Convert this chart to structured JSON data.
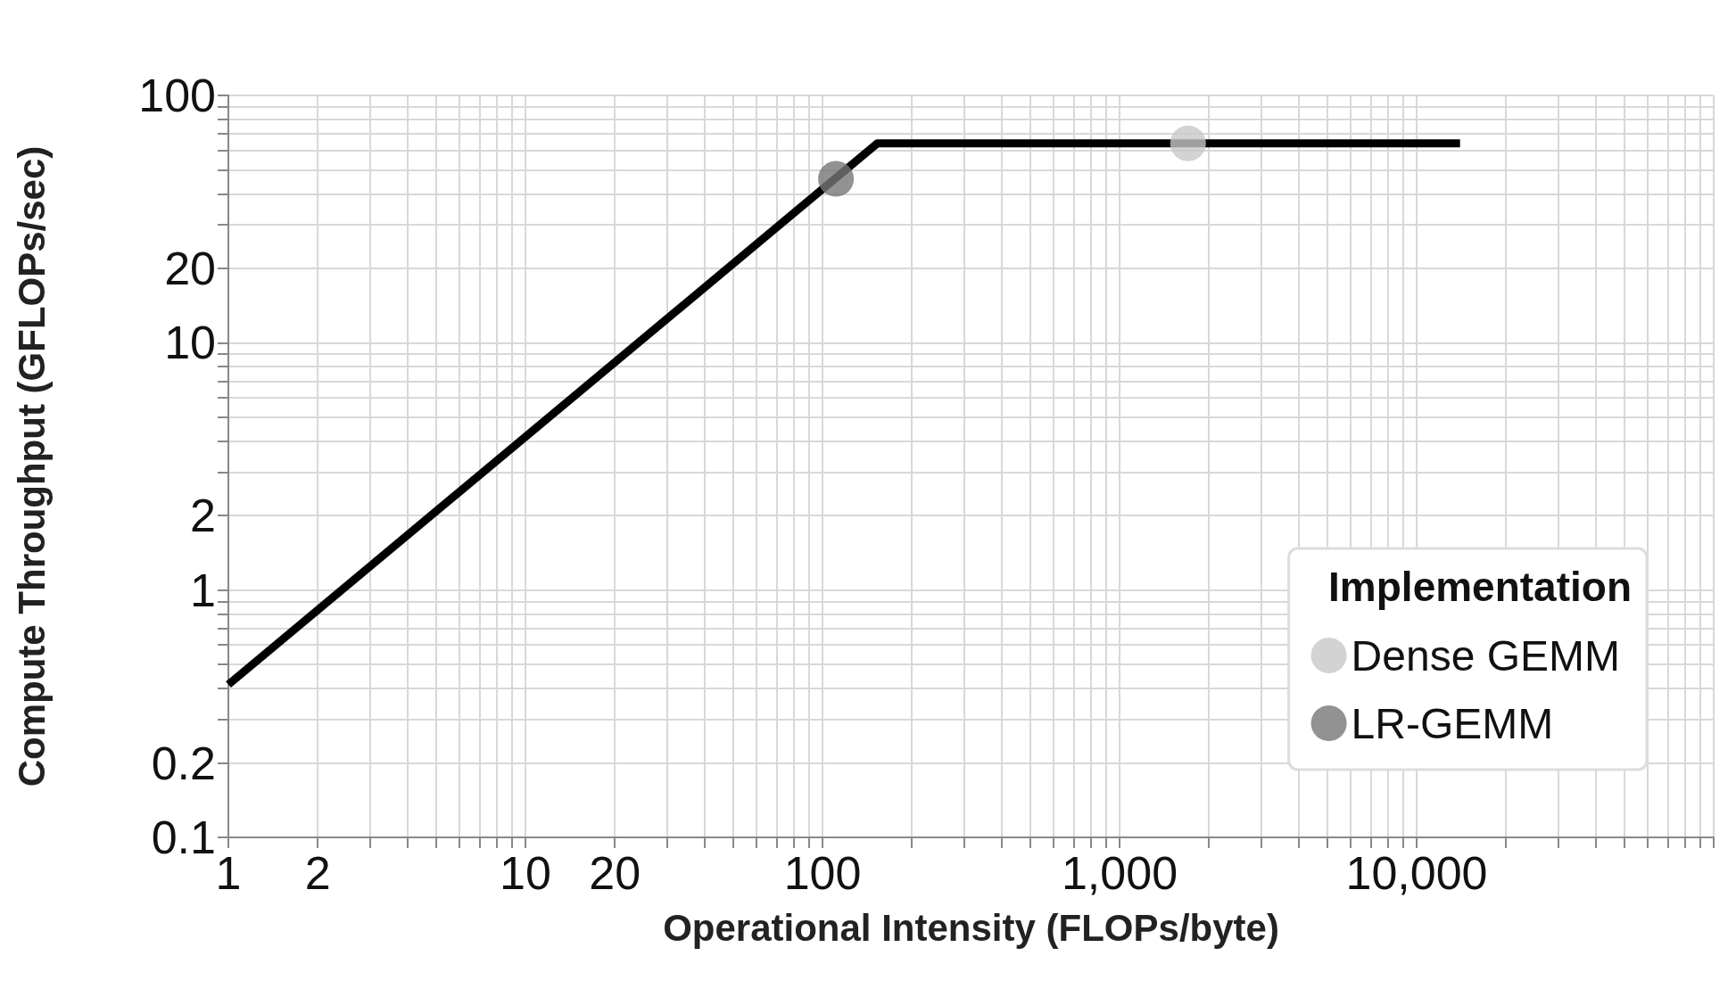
{
  "chart_data": {
    "type": "scatter",
    "xlabel": "Operational Intensity (FLOPs/byte)",
    "ylabel": "Compute Throughput (GFLOPs/sec)",
    "legend_title": "Implementation",
    "log": "xy",
    "grid": true,
    "legend": "bottom right",
    "marker": "circle",
    "xlim": [
      1,
      100000
    ],
    "ylim": [
      0.1,
      100
    ],
    "xticks": [
      1,
      2,
      {
        "value": 3,
        "label": null
      },
      {
        "value": 4,
        "label": null
      },
      {
        "value": 5,
        "label": null
      },
      {
        "value": 6,
        "label": null
      },
      {
        "value": 7,
        "label": null
      },
      {
        "value": 8,
        "label": null
      },
      {
        "value": 9,
        "label": null
      },
      10,
      20,
      {
        "value": 30,
        "label": null
      },
      {
        "value": 40,
        "label": null
      },
      {
        "value": 50,
        "label": null
      },
      {
        "value": 60,
        "label": null
      },
      {
        "value": 70,
        "label": null
      },
      {
        "value": 80,
        "label": null
      },
      {
        "value": 90,
        "label": null
      },
      100,
      {
        "value": 200,
        "label": null
      },
      {
        "value": 300,
        "label": null
      },
      {
        "value": 400,
        "label": null
      },
      {
        "value": 500,
        "label": null
      },
      {
        "value": 600,
        "label": null
      },
      {
        "value": 700,
        "label": null
      },
      {
        "value": 800,
        "label": null
      },
      {
        "value": 900,
        "label": null
      },
      {
        "value": 1000,
        "label": "1,000"
      },
      {
        "value": 2000,
        "label": null
      },
      {
        "value": 3000,
        "label": null
      },
      {
        "value": 4000,
        "label": null
      },
      {
        "value": 5000,
        "label": null
      },
      {
        "value": 6000,
        "label": null
      },
      {
        "value": 7000,
        "label": null
      },
      {
        "value": 8000,
        "label": null
      },
      {
        "value": 9000,
        "label": null
      },
      {
        "value": 10000,
        "label": "10,000"
      },
      {
        "value": 20000,
        "label": null
      },
      {
        "value": 30000,
        "label": null
      },
      {
        "value": 40000,
        "label": null
      },
      {
        "value": 50000,
        "label": null
      },
      {
        "value": 60000,
        "label": null
      },
      {
        "value": 70000,
        "label": null
      },
      {
        "value": 80000,
        "label": null
      },
      {
        "value": 90000,
        "label": null
      },
      {
        "value": 100000,
        "label": null
      }
    ],
    "yticks": [
      0.1,
      0.2,
      {
        "value": 0.3,
        "label": null
      },
      {
        "value": 0.4,
        "label": null
      },
      {
        "value": 0.5,
        "label": null
      },
      {
        "value": 0.6,
        "label": null
      },
      {
        "value": 0.7,
        "label": null
      },
      {
        "value": 0.8,
        "label": null
      },
      {
        "value": 0.9,
        "label": null
      },
      1,
      2,
      {
        "value": 3,
        "label": null
      },
      {
        "value": 4,
        "label": null
      },
      {
        "value": 5,
        "label": null
      },
      {
        "value": 6,
        "label": null
      },
      {
        "value": 7,
        "label": null
      },
      {
        "value": 8,
        "label": null
      },
      {
        "value": 9,
        "label": null
      },
      10,
      20,
      {
        "value": 30,
        "label": null
      },
      {
        "value": 40,
        "label": null
      },
      {
        "value": 50,
        "label": null
      },
      {
        "value": 60,
        "label": null
      },
      {
        "value": 70,
        "label": null
      },
      {
        "value": 80,
        "label": null
      },
      {
        "value": 90,
        "label": null
      },
      100
    ],
    "series": [
      {
        "type": "line",
        "color": "#000000",
        "marker": "none",
        "line_style": "solid",
        "x": [
          1,
          153,
          14000
        ],
        "values": [
          0.415,
          64,
          64
        ]
      },
      {
        "name": "Dense GEMM",
        "color": "#c8c8c8",
        "x": [
          1700
        ],
        "values": [
          64
        ]
      },
      {
        "name": "LR-GEMM",
        "color": "#777777",
        "x": [
          111
        ],
        "values": [
          46
        ]
      }
    ]
  }
}
